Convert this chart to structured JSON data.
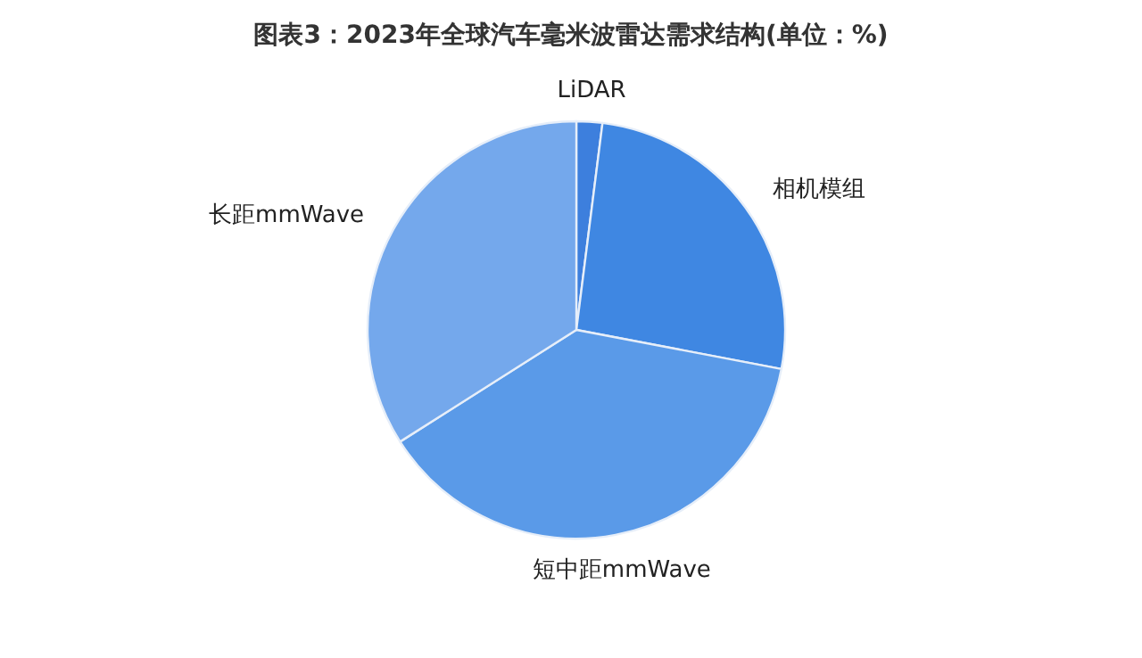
{
  "chart_data": {
    "type": "pie",
    "title": "图表3：2023年全球汽车毫米波雷达需求结构(单位：%)",
    "categories": [
      "LiDAR",
      "相机模组",
      "短中距mmWave",
      "长距mmWave"
    ],
    "values": [
      2,
      26,
      38,
      34
    ],
    "colors": [
      "#3d7fdd",
      "#3f87e2",
      "#5a9ae8",
      "#74a8ec"
    ]
  }
}
